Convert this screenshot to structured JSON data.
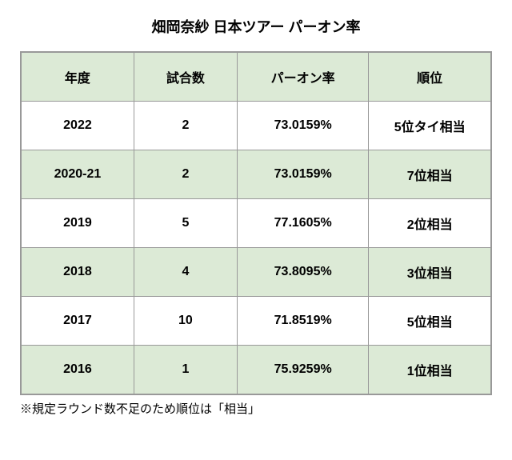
{
  "title": "畑岡奈紗 日本ツアー パーオン率",
  "columns": [
    "年度",
    "試合数",
    "パーオン率",
    "順位"
  ],
  "rows": [
    {
      "year": "2022",
      "games": "2",
      "rate": "73.0159%",
      "rank": "5位タイ相当",
      "bg": "white"
    },
    {
      "year": "2020-21",
      "games": "2",
      "rate": "73.0159%",
      "rank": "7位相当",
      "bg": "green"
    },
    {
      "year": "2019",
      "games": "5",
      "rate": "77.1605%",
      "rank": "2位相当",
      "bg": "white"
    },
    {
      "year": "2018",
      "games": "4",
      "rate": "73.8095%",
      "rank": "3位相当",
      "bg": "green"
    },
    {
      "year": "2017",
      "games": "10",
      "rate": "71.8519%",
      "rank": "5位相当",
      "bg": "white"
    },
    {
      "year": "2016",
      "games": "1",
      "rate": "75.9259%",
      "rank": "1位相当",
      "bg": "green"
    }
  ],
  "footnote": "※規定ラウンド数不足のため順位は「相当」",
  "colors": {
    "header_bg": "#dcead6",
    "row_alt_bg": "#dcead6",
    "row_bg": "#ffffff",
    "border": "#999999",
    "text": "#000000"
  },
  "font_sizes": {
    "title": 18,
    "header": 16,
    "cell": 16,
    "footnote": 15
  }
}
